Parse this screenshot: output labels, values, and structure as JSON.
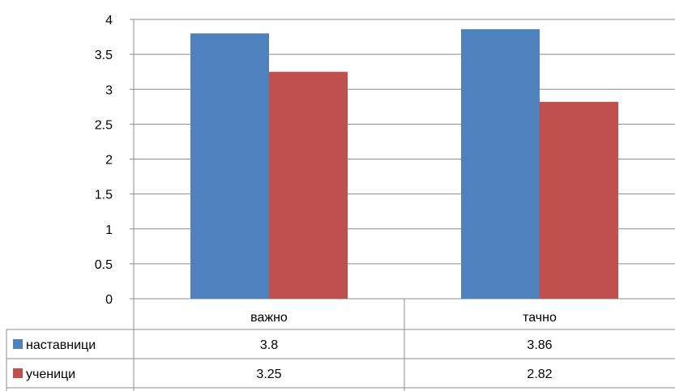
{
  "chart_data": {
    "type": "bar",
    "categories": [
      "важно",
      "тачно"
    ],
    "series": [
      {
        "name": "наставници",
        "values": [
          3.8,
          3.86
        ],
        "color": "#4F81BD",
        "labels": [
          "3.8",
          "3.86"
        ]
      },
      {
        "name": "ученици",
        "values": [
          3.25,
          2.82
        ],
        "color": "#C0504D",
        "labels": [
          "3.25",
          "2.82"
        ]
      }
    ],
    "ylim": [
      0,
      4
    ],
    "yticks": [
      "0",
      "0.5",
      "1",
      "1.5",
      "2",
      "2.5",
      "3",
      "3.5",
      "4"
    ],
    "grid": true,
    "legend": "data-table-left",
    "data_table": true
  }
}
